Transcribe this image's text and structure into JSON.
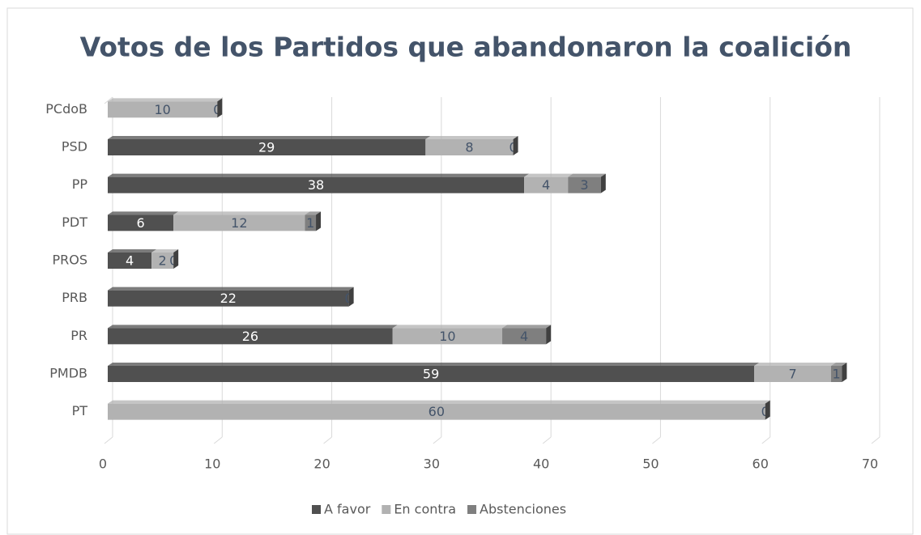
{
  "chart_data": {
    "type": "bar3d_stacked_horizontal",
    "title": "Votos de los Partidos que abandonaron la coalición",
    "categories": [
      "PCdoB",
      "PSD",
      "PP",
      "PDT",
      "PROS",
      "PRB",
      "PR",
      "PMDB",
      "PT"
    ],
    "series": [
      {
        "name": "A favor",
        "color": "#505050",
        "label_color": "#ffffff",
        "values": [
          0,
          29,
          38,
          6,
          4,
          22,
          26,
          59,
          0
        ]
      },
      {
        "name": "En contra",
        "color": "#b2b2b2",
        "label_color": "#44546a",
        "values": [
          10,
          8,
          4,
          12,
          2,
          0,
          10,
          7,
          60
        ]
      },
      {
        "name": "Abstenciones",
        "color": "#7f7f7f",
        "label_color": "#44546a",
        "values": [
          0,
          0,
          3,
          1,
          0,
          0,
          4,
          1,
          0
        ]
      }
    ],
    "xlim": [
      0,
      70
    ],
    "xticks": [
      0,
      10,
      20,
      30,
      40,
      50,
      60,
      70
    ],
    "grid": true,
    "legend": "bottom"
  }
}
